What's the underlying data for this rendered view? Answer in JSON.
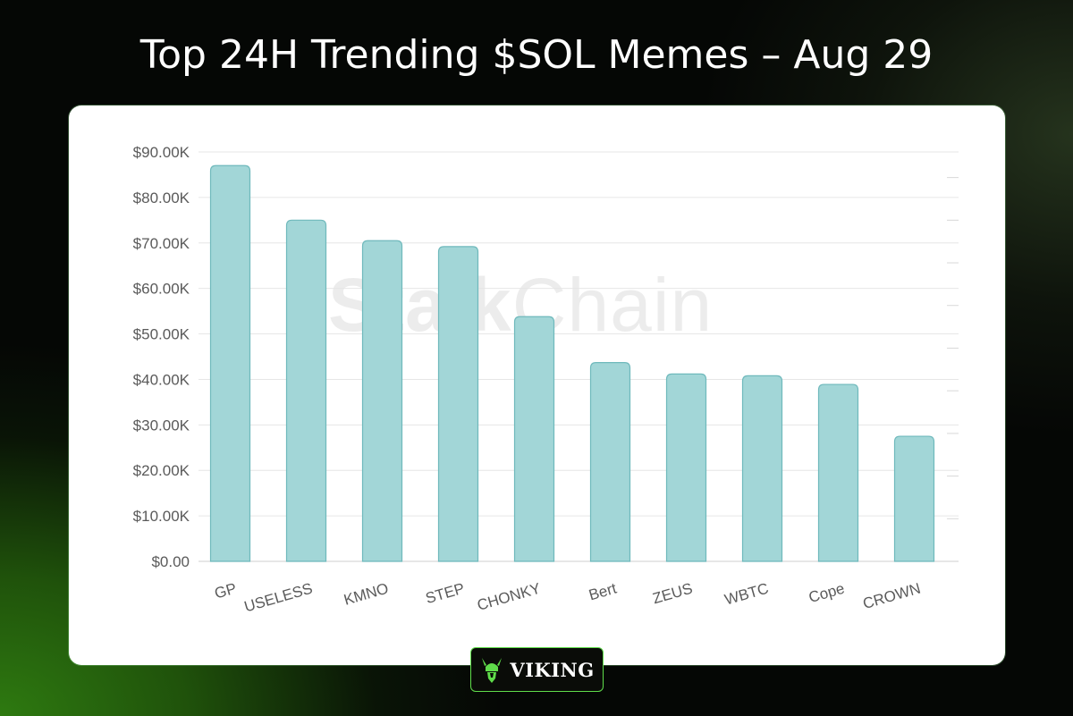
{
  "header": {
    "title": "Top 24H Trending $SOL Memes – Aug 29"
  },
  "watermark": {
    "bold_part": "Stalk",
    "light_part": "Chain"
  },
  "logo": {
    "text": "VIKING",
    "icon": "viking-helmet-icon",
    "accent_color": "#5fdc4a"
  },
  "chart_data": {
    "type": "bar",
    "title": "",
    "xlabel": "",
    "ylabel": "",
    "ylim": [
      0,
      90000
    ],
    "yticks": [
      0,
      10000,
      20000,
      30000,
      40000,
      50000,
      60000,
      70000,
      80000,
      90000
    ],
    "ytick_labels": [
      "$0.00",
      "$10.00K",
      "$20.00K",
      "$30.00K",
      "$40.00K",
      "$50.00K",
      "$60.00K",
      "$70.00K",
      "$80.00K",
      "$90.00K"
    ],
    "categories": [
      "GP",
      "USELESS",
      "KMNO",
      "STEP",
      "CHONKY",
      "Bert",
      "ZEUS",
      "WBTC",
      "Cope",
      "CROWN"
    ],
    "values": [
      87000,
      75000,
      70500,
      69200,
      53800,
      43700,
      41200,
      40800,
      38900,
      27500
    ],
    "bar_color": "#a2d6d7",
    "bar_edge_color": "#6fb9bc",
    "grid": true,
    "legend": "none"
  }
}
